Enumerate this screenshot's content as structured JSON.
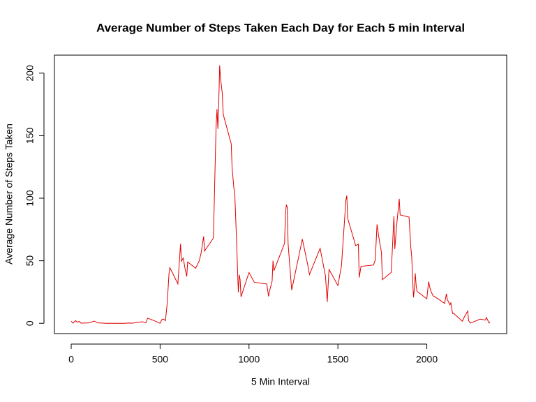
{
  "chart_data": {
    "type": "line",
    "title": "Average Number of Steps Taken Each Day for Each 5 min Interval",
    "x_label": "5 Min Interval",
    "y_label": "Average Number of Steps Taken",
    "x": [
      0,
      10,
      25,
      35,
      45,
      55,
      100,
      130,
      150,
      200,
      230,
      245,
      300,
      320,
      345,
      400,
      420,
      430,
      440,
      450,
      500,
      510,
      520,
      530,
      540,
      550,
      555,
      600,
      615,
      620,
      630,
      640,
      650,
      655,
      700,
      720,
      730,
      745,
      750,
      800,
      810,
      815,
      820,
      825,
      830,
      835,
      840,
      850,
      855,
      900,
      905,
      915,
      920,
      930,
      935,
      940,
      945,
      950,
      955,
      1000,
      1030,
      1100,
      1110,
      1115,
      1130,
      1135,
      1140,
      1200,
      1205,
      1210,
      1215,
      1220,
      1240,
      1300,
      1330,
      1340,
      1400,
      1430,
      1440,
      1450,
      1500,
      1520,
      1545,
      1550,
      1555,
      1600,
      1615,
      1620,
      1630,
      1700,
      1710,
      1720,
      1730,
      1745,
      1750,
      1800,
      1815,
      1820,
      1830,
      1845,
      1850,
      1900,
      1910,
      1915,
      1925,
      1930,
      1935,
      1940,
      1945,
      2000,
      2010,
      2020,
      2035,
      2045,
      2100,
      2110,
      2115,
      2130,
      2135,
      2145,
      2150,
      2200,
      2210,
      2230,
      2235,
      2245,
      2300,
      2330,
      2335,
      2340,
      2350,
      2355
    ],
    "series": [
      {
        "color": "#e00000",
        "values": [
          1.7,
          0.1,
          2.1,
          0.9,
          1.5,
          0.1,
          0.3,
          1.8,
          0.3,
          0,
          0,
          0,
          0,
          0.2,
          0.1,
          1.2,
          0.3,
          4.1,
          3.5,
          3.1,
          0,
          3.0,
          3.3,
          2.1,
          16,
          39.5,
          44.5,
          31.5,
          63.5,
          49.5,
          52.2,
          44,
          37.4,
          49,
          44,
          49.9,
          55.7,
          69.5,
          57.8,
          68.2,
          129.4,
          157.5,
          171.2,
          155.4,
          177.3,
          206.2,
          195.9,
          183.4,
          167,
          143.5,
          124,
          108.1,
          103.7,
          66.2,
          45.2,
          24.8,
          38.8,
          35,
          21.1,
          40.6,
          32.8,
          31.4,
          21.5,
          25.5,
          33.7,
          50,
          42,
          63.9,
          87.6,
          94.8,
          92.8,
          63.4,
          26.5,
          67.3,
          47,
          39,
          59.9,
          37.9,
          17.0,
          43.1,
          30.2,
          45.9,
          98.7,
          102.1,
          83.9,
          62.1,
          63.2,
          36.6,
          45.5,
          46.6,
          50.5,
          79.1,
          68.9,
          56.5,
          34.8,
          40.7,
          85.6,
          59.3,
          77.7,
          99.5,
          86.6,
          84.9,
          60.5,
          53.4,
          20.7,
          27.4,
          40,
          30.2,
          25.5,
          19.6,
          33.3,
          26.8,
          21.9,
          21.3,
          15.9,
          23.5,
          19.2,
          14.7,
          16.3,
          7.8,
          8.1,
          1.6,
          4.8,
          9.8,
          2.2,
          0.1,
          3.3,
          2.6,
          4.7,
          3.3,
          0.2,
          1.1
        ]
      }
    ],
    "xlim": [
      -94.2,
      2449.2
    ],
    "ylim": [
      -8.25,
      214.4
    ],
    "xticks": [
      0,
      500,
      1000,
      1500,
      2000
    ],
    "yticks": [
      0,
      50,
      100,
      150,
      200
    ]
  }
}
